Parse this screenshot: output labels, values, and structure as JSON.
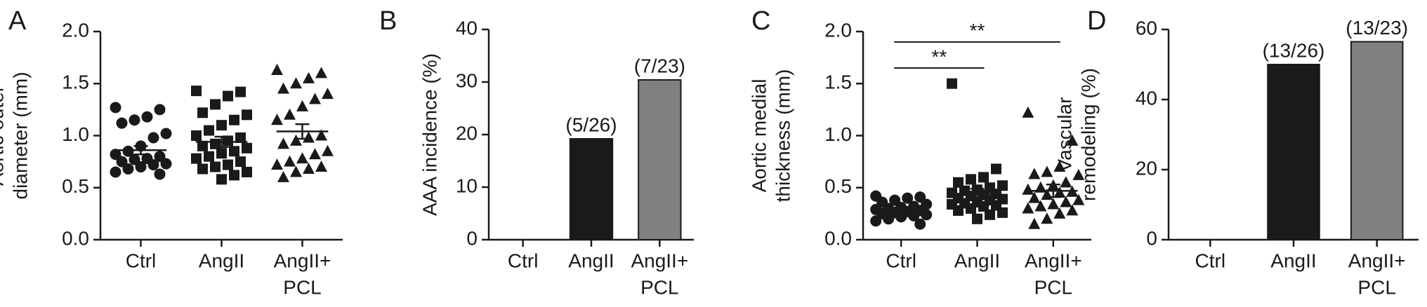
{
  "chart_data": [
    {
      "type": "dotplot",
      "panel_label": "A",
      "ylabel": [
        "Aortic outer",
        "diameter (mm)"
      ],
      "categories": [
        "Ctrl",
        "AngII",
        [
          "AngII+",
          "PCL"
        ]
      ],
      "ylim": [
        0,
        2
      ],
      "yticks": [
        {
          "value": 0,
          "label": "0.0"
        },
        0.5,
        {
          "value": 1,
          "label": "1.0"
        },
        1.5,
        {
          "value": 2,
          "label": "2.0"
        }
      ],
      "color": "#1a1a1a",
      "groups": [
        {
          "marker": "circle",
          "mean": 0.86,
          "sem": 0.04,
          "values": [
            1.27,
            1.25,
            1.18,
            1.15,
            1.12,
            1.02,
            0.98,
            0.9,
            0.85,
            0.82,
            0.8,
            0.78,
            0.77,
            0.75,
            0.73,
            0.72,
            0.7,
            0.68,
            0.65,
            0.63
          ]
        },
        {
          "marker": "square",
          "mean": 0.94,
          "sem": 0.05,
          "values": [
            1.43,
            1.42,
            1.38,
            1.3,
            1.22,
            1.2,
            1.15,
            1.1,
            1.05,
            1.0,
            0.98,
            0.95,
            0.92,
            0.9,
            0.88,
            0.85,
            0.83,
            0.8,
            0.78,
            0.75,
            0.72,
            0.7,
            0.68,
            0.65,
            0.62,
            0.58
          ]
        },
        {
          "marker": "triangle",
          "mean": 1.04,
          "sem": 0.07,
          "values": [
            1.63,
            1.6,
            1.55,
            1.5,
            1.45,
            1.4,
            1.35,
            1.28,
            1.2,
            1.15,
            1.0,
            0.98,
            0.95,
            0.92,
            0.85,
            0.82,
            0.78,
            0.75,
            0.72,
            0.7,
            0.68,
            0.65,
            0.6
          ]
        }
      ]
    },
    {
      "type": "bar",
      "panel_label": "B",
      "ylabel": [
        "AAA incidence (%)"
      ],
      "categories": [
        "Ctrl",
        "AngII",
        [
          "AngII+",
          "PCL"
        ]
      ],
      "values": [
        0,
        19.2,
        30.4
      ],
      "value_labels": [
        null,
        "(5/26)",
        "(7/23)"
      ],
      "colors": [
        "#1a1a1a",
        "#1a1a1a",
        "#808080"
      ],
      "ylim": [
        0,
        40
      ],
      "yticks": [
        0,
        10,
        20,
        30,
        40
      ]
    },
    {
      "type": "dotplot",
      "panel_label": "C",
      "ylabel": [
        "Aortic medial",
        "thickness (mm)"
      ],
      "categories": [
        "Ctrl",
        "AngII",
        [
          "AngII+",
          "PCL"
        ]
      ],
      "ylim": [
        0,
        2
      ],
      "yticks": [
        {
          "value": 0,
          "label": "0.0"
        },
        0.5,
        {
          "value": 1,
          "label": "1.0"
        },
        1.5,
        {
          "value": 2,
          "label": "2.0"
        }
      ],
      "color": "#1a1a1a",
      "annotations": [
        {
          "text": "**",
          "between": [
            0,
            1
          ],
          "y": 1.65
        },
        {
          "text": "**",
          "between": [
            0,
            2
          ],
          "y": 1.9
        }
      ],
      "groups": [
        {
          "marker": "circle",
          "mean": 0.29,
          "sem": 0.02,
          "values": [
            0.42,
            0.41,
            0.4,
            0.38,
            0.36,
            0.34,
            0.32,
            0.31,
            0.3,
            0.29,
            0.28,
            0.27,
            0.26,
            0.25,
            0.24,
            0.23,
            0.22,
            0.2,
            0.18,
            0.15
          ]
        },
        {
          "marker": "square",
          "mean": 0.44,
          "sem": 0.05,
          "values": [
            1.5,
            0.68,
            0.6,
            0.58,
            0.55,
            0.52,
            0.5,
            0.48,
            0.47,
            0.45,
            0.44,
            0.43,
            0.42,
            0.4,
            0.39,
            0.38,
            0.36,
            0.35,
            0.34,
            0.33,
            0.32,
            0.3,
            0.28,
            0.26,
            0.24,
            0.2
          ]
        },
        {
          "marker": "triangle",
          "mean": 0.47,
          "sem": 0.06,
          "values": [
            1.22,
            0.95,
            0.7,
            0.65,
            0.63,
            0.62,
            0.55,
            0.52,
            0.5,
            0.48,
            0.46,
            0.45,
            0.43,
            0.4,
            0.38,
            0.36,
            0.34,
            0.32,
            0.3,
            0.28,
            0.25,
            0.2,
            0.15
          ]
        }
      ]
    },
    {
      "type": "bar",
      "panel_label": "D",
      "ylabel": [
        "Vascular",
        "remodeling (%)"
      ],
      "categories": [
        "Ctrl",
        "AngII",
        [
          "AngII+",
          "PCL"
        ]
      ],
      "values": [
        0,
        50,
        56.5
      ],
      "value_labels": [
        null,
        "(13/26)",
        "(13/23)"
      ],
      "colors": [
        "#1a1a1a",
        "#1a1a1a",
        "#808080"
      ],
      "ylim": [
        0,
        60
      ],
      "yticks": [
        0,
        20,
        40,
        60
      ]
    }
  ]
}
